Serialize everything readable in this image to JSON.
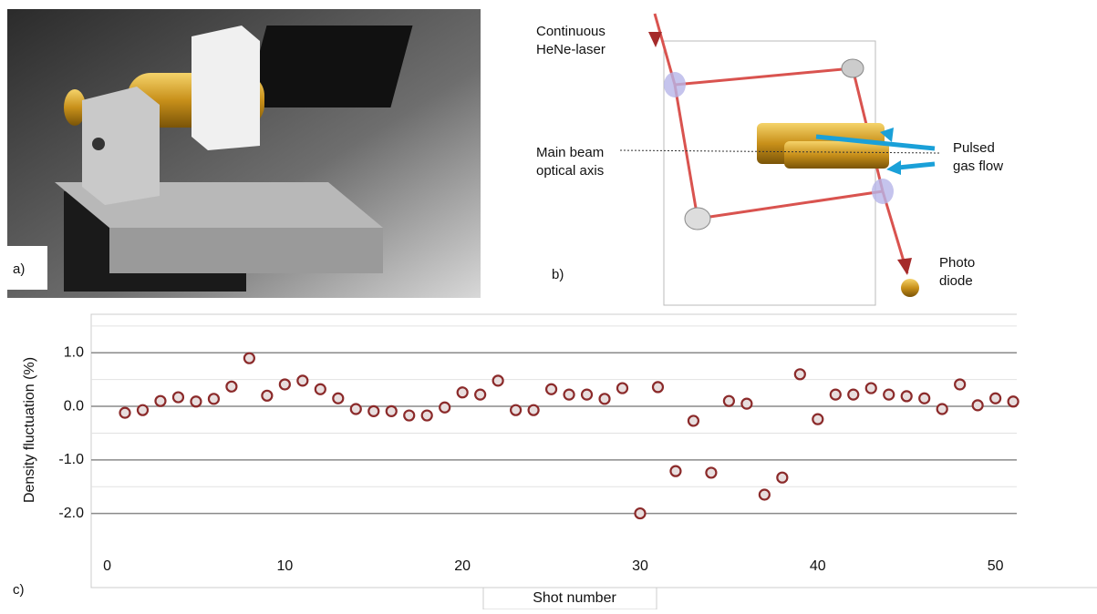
{
  "panels": {
    "a": "a)",
    "b": "b)",
    "c": "c)",
    "laser_label": [
      "Continuous",
      "HeNe-laser"
    ],
    "axis_label": [
      "Main beam",
      "optical axis"
    ],
    "gas_label": [
      "Pulsed",
      "gas flow"
    ],
    "diode_label": [
      "Photo",
      "diode"
    ]
  },
  "chart_data": {
    "type": "scatter",
    "xlabel": "Shot number",
    "ylabel": "Density fluctuation (%)",
    "x": [
      1,
      2,
      3,
      4,
      5,
      6,
      7,
      8,
      9,
      10,
      11,
      12,
      13,
      14,
      15,
      16,
      17,
      18,
      19,
      20,
      21,
      22,
      23,
      24,
      25,
      26,
      27,
      28,
      29,
      30,
      31,
      32,
      33,
      34,
      35,
      36,
      37,
      38,
      39,
      40,
      41,
      42,
      43,
      44,
      45,
      46,
      47,
      48,
      49,
      50,
      51
    ],
    "values": [
      -0.12,
      -0.07,
      0.1,
      0.17,
      0.09,
      0.14,
      0.37,
      0.9,
      0.2,
      0.41,
      0.48,
      0.32,
      0.15,
      -0.05,
      -0.09,
      -0.09,
      -0.17,
      -0.17,
      -0.02,
      0.26,
      0.22,
      0.48,
      -0.07,
      -0.07,
      0.32,
      0.22,
      0.22,
      0.14,
      0.34,
      -2.0,
      0.36,
      -1.21,
      -0.27,
      -1.24,
      0.1,
      0.05,
      -1.65,
      -1.33,
      0.6,
      -0.24,
      0.22,
      0.22,
      0.34,
      0.22,
      0.19,
      0.15,
      -0.05,
      0.41,
      0.02,
      0.15,
      0.09
    ],
    "color": "#8b2a2a",
    "xlim": [
      -0.9,
      51.2
    ],
    "ylim": [
      -2.62,
      1.72
    ],
    "xticks": [
      0,
      10,
      20,
      30,
      40,
      50
    ],
    "yticks": [
      {
        "value": 1,
        "label": "1.0"
      },
      {
        "value": 0,
        "label": "0.0"
      },
      {
        "value": -1,
        "label": "-1.0"
      },
      {
        "value": -2,
        "label": "-2.0"
      }
    ],
    "minor_yticks": [
      1.5,
      0.5,
      -0.5,
      -1.5
    ],
    "grid": true
  }
}
